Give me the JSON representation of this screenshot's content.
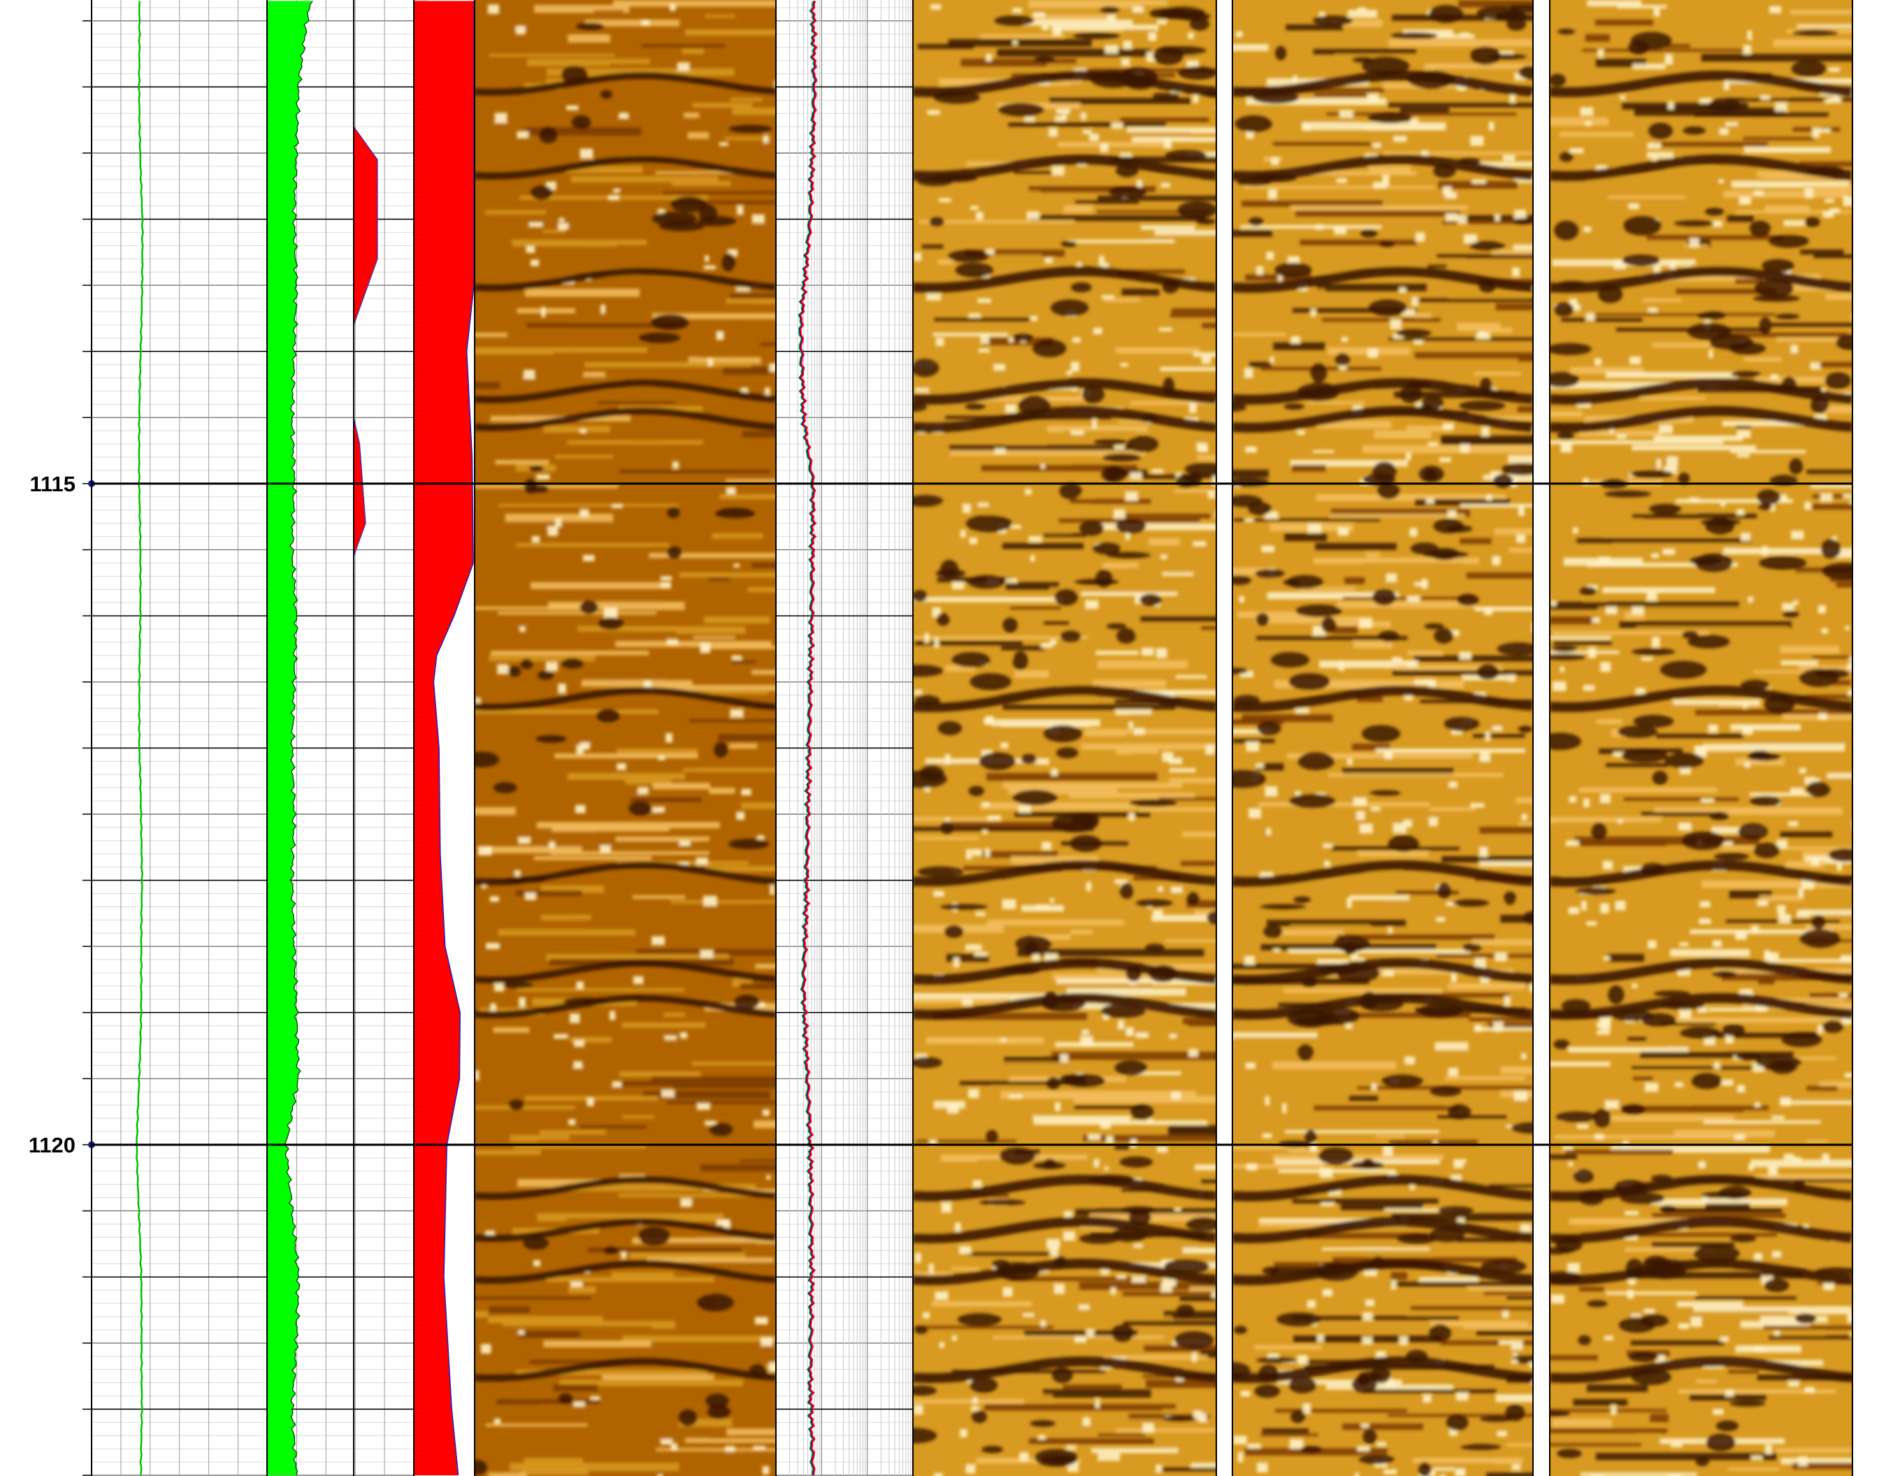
{
  "chart_data": {
    "type": "line",
    "title": "",
    "depth_labels": [
      {
        "depth": 1115,
        "text": "1115"
      },
      {
        "depth": 1120,
        "text": "1120"
      }
    ],
    "depth_range": [
      1111.35,
      1122.5
    ],
    "tracks": [
      {
        "id": "gr",
        "name": "",
        "color": "#00c000",
        "scale": [
          0,
          1
        ],
        "depth": [
          1111.35,
          1112,
          1113,
          1114,
          1115,
          1116,
          1117,
          1118,
          1119,
          1120,
          1121,
          1122,
          1122.5
        ],
        "values": [
          0.27,
          0.27,
          0.29,
          0.28,
          0.27,
          0.28,
          0.27,
          0.29,
          0.28,
          0.26,
          0.28,
          0.29,
          0.28
        ]
      },
      {
        "id": "fill-green",
        "name": "",
        "color": "#00ff00",
        "scale": [
          0,
          1
        ],
        "depth": [
          1111.35,
          1111.5,
          1112,
          1113,
          1113.5,
          1114,
          1114.5,
          1115,
          1115.5,
          1116,
          1116.5,
          1117,
          1117.5,
          1118,
          1118.5,
          1119,
          1119.5,
          1120,
          1120.5,
          1121,
          1121.5,
          1122,
          1122.5
        ],
        "values": [
          0.21,
          0.19,
          0.15,
          0.13,
          0.14,
          0.13,
          0.12,
          0.13,
          0.12,
          0.14,
          0.13,
          0.12,
          0.13,
          0.12,
          0.13,
          0.14,
          0.15,
          0.09,
          0.12,
          0.15,
          0.14,
          0.12,
          0.14
        ]
      },
      {
        "id": "fill-red-small",
        "name": "",
        "color": "#ff0000",
        "scale": [
          0,
          1
        ],
        "depth": [
          1112.3,
          1112.55,
          1113.3,
          1113.8,
          1114.5,
          1114.7,
          1115.3,
          1115.55
        ],
        "values": [
          0.0,
          0.4,
          0.4,
          0.0,
          0.0,
          0.1,
          0.2,
          0.0
        ]
      },
      {
        "id": "fill-red-large",
        "name": "",
        "color": "#ff0000",
        "scale": [
          0,
          1
        ],
        "depth": [
          1111.35,
          1113.5,
          1114.0,
          1114.8,
          1115.6,
          1116.0,
          1116.3,
          1116.5,
          1117.0,
          1117.8,
          1118.5,
          1119.0,
          1119.5,
          1120.0,
          1121.0,
          1122.0,
          1122.5
        ],
        "values": [
          1.0,
          1.0,
          0.88,
          0.97,
          0.99,
          0.67,
          0.38,
          0.33,
          0.42,
          0.44,
          0.52,
          0.77,
          0.76,
          0.55,
          0.5,
          0.63,
          0.74
        ]
      },
      {
        "id": "resistivity",
        "name": "",
        "scale": [
          0,
          1
        ],
        "depth": [
          1111.35,
          1112,
          1113,
          1113.8,
          1114.5,
          1115,
          1116,
          1117,
          1118.2,
          1118.8,
          1120,
          1121,
          1121.8,
          1122.5
        ],
        "values": [
          0.27,
          0.28,
          0.25,
          0.18,
          0.2,
          0.27,
          0.26,
          0.24,
          0.22,
          0.2,
          0.25,
          0.26,
          0.25,
          0.27
        ],
        "curve_colors": [
          "#00cc00",
          "#0000ff",
          "#ff0000"
        ]
      }
    ],
    "image_tracks": 4,
    "image_palette": [
      "#3a1400",
      "#7a3a00",
      "#b06400",
      "#d89a20",
      "#f4c060",
      "#fff2c8"
    ]
  }
}
